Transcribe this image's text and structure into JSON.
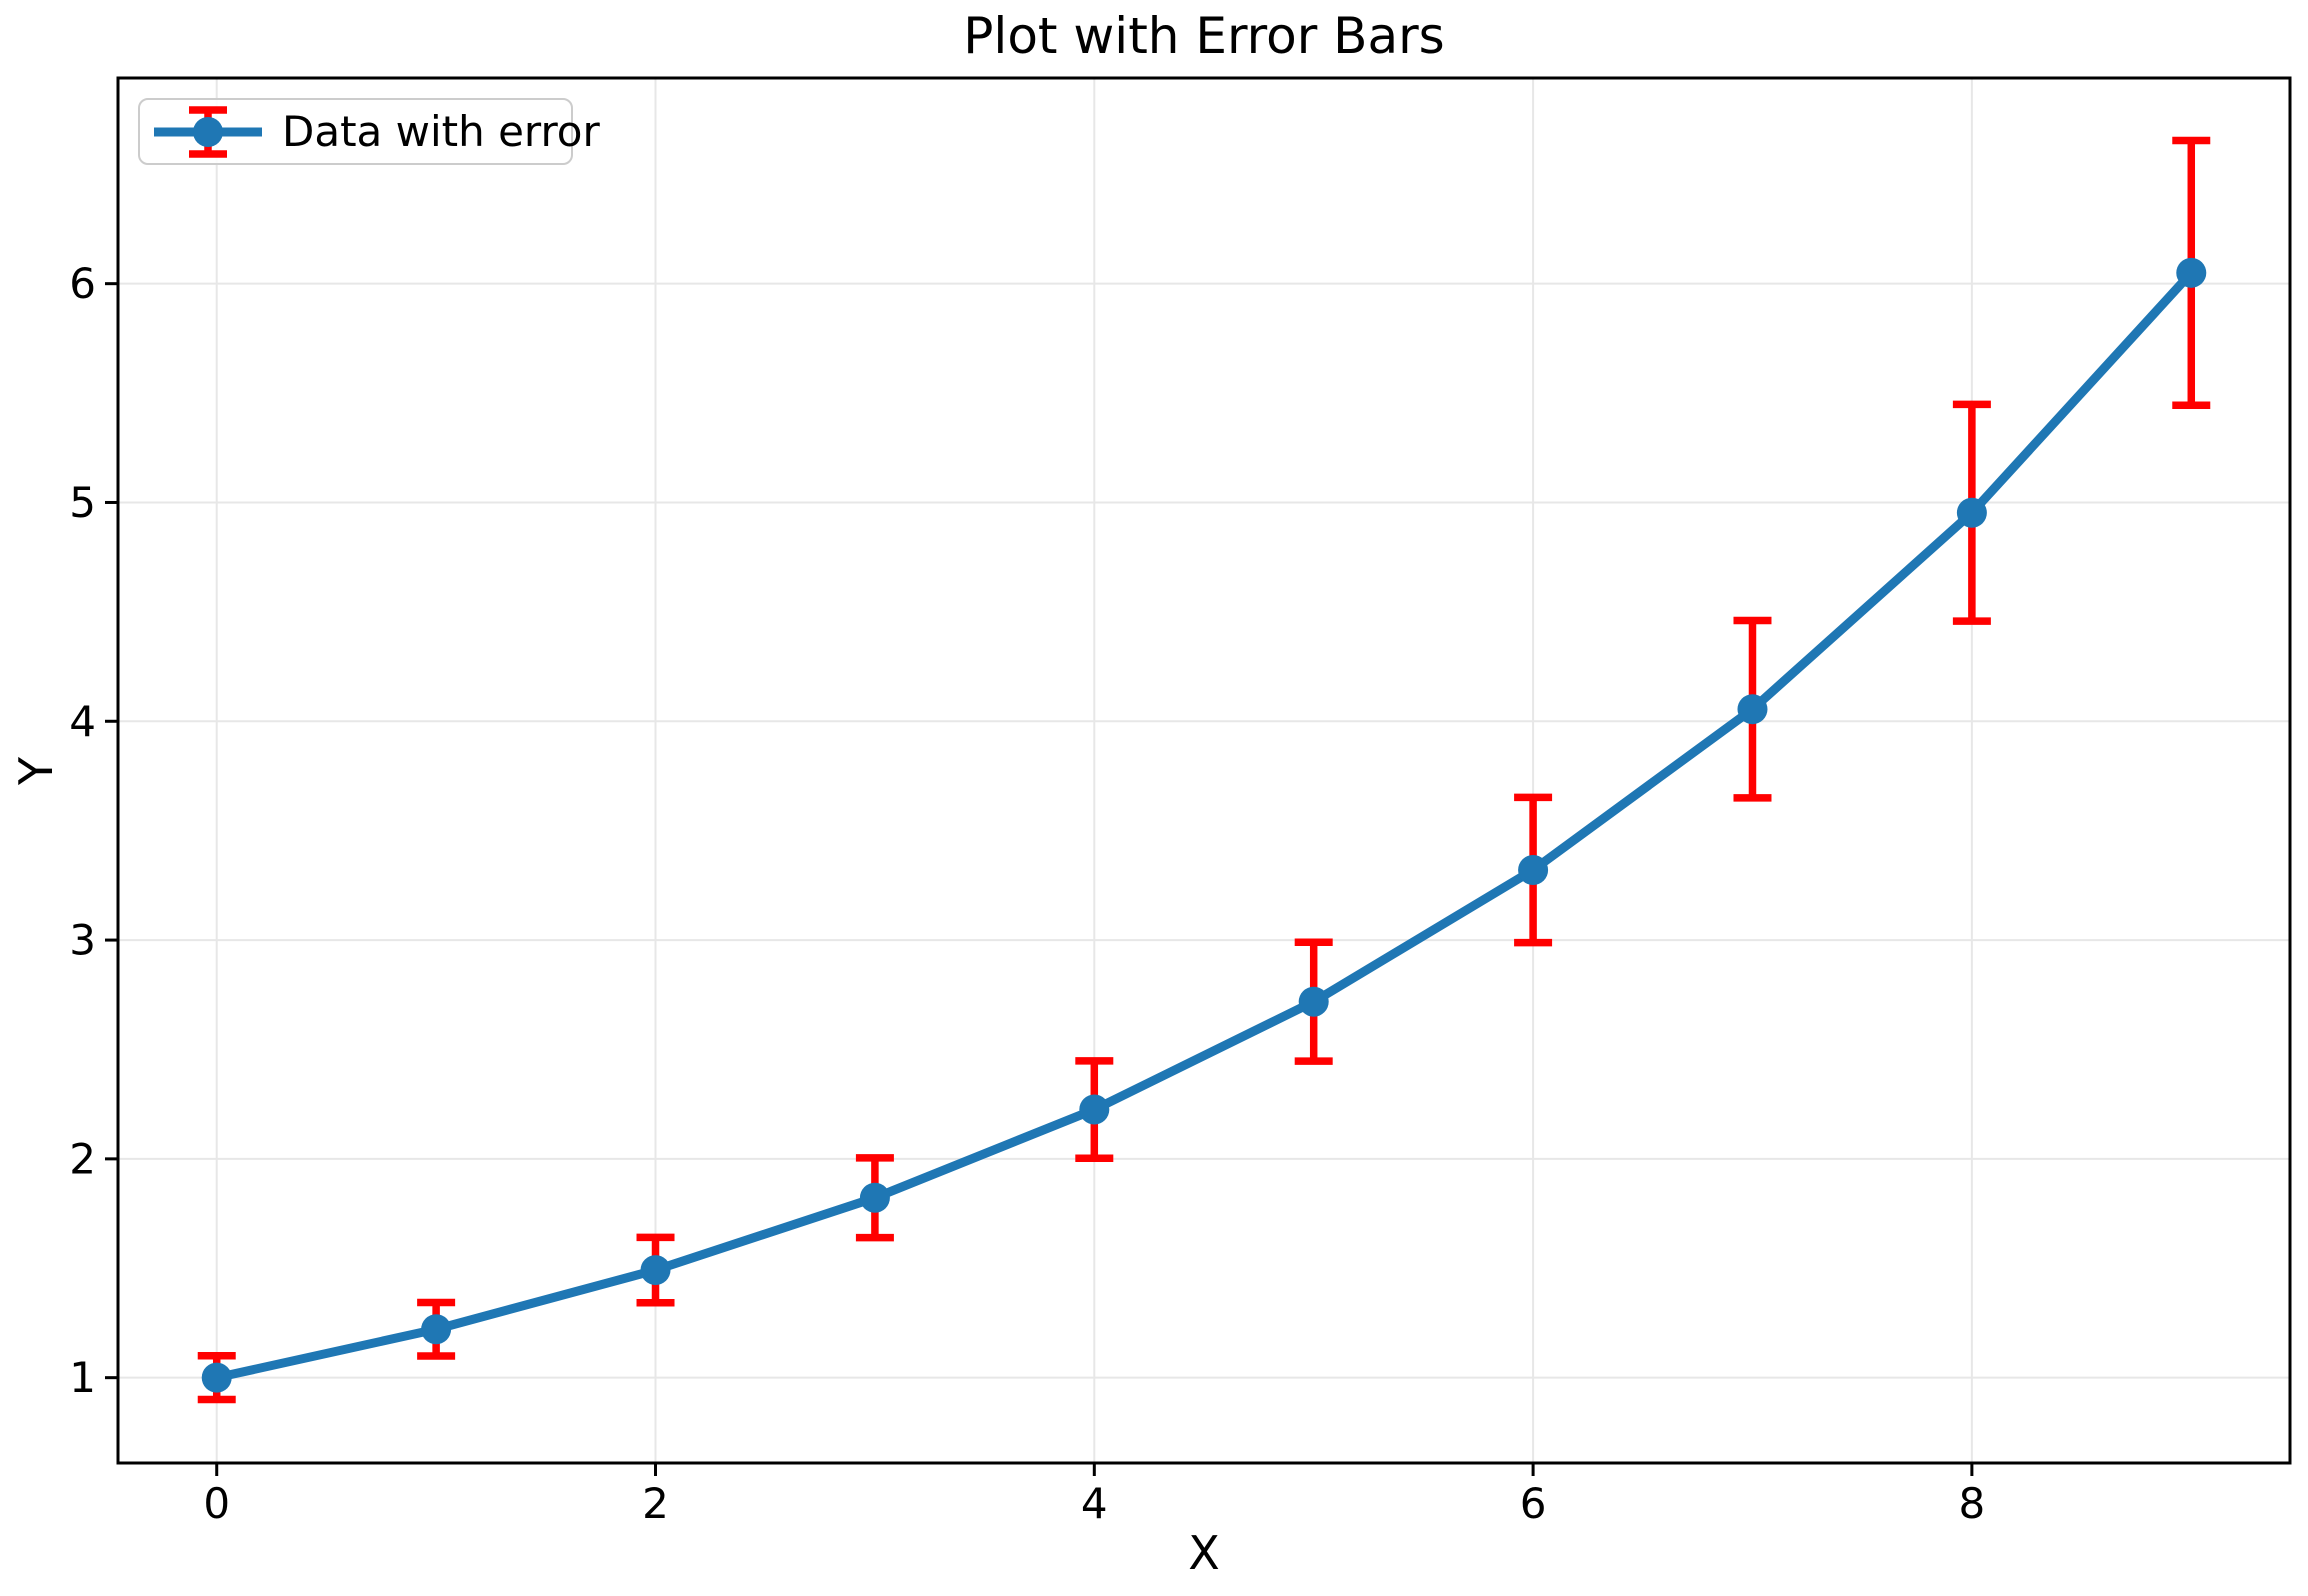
{
  "chart_data": {
    "type": "line",
    "title": "Plot with Error Bars",
    "xlabel": "X",
    "ylabel": "Y",
    "legend_label": "Data with error",
    "legend_position": "upper left",
    "grid": true,
    "x": [
      0,
      1,
      2,
      3,
      4,
      5,
      6,
      7,
      8,
      9
    ],
    "y": [
      1.0,
      1.2214,
      1.4918,
      1.8221,
      2.2255,
      2.7183,
      3.3201,
      4.0552,
      4.953,
      6.0496
    ],
    "yerr": [
      0.1,
      0.1221,
      0.1492,
      0.1822,
      0.2226,
      0.2718,
      0.332,
      0.4055,
      0.4953,
      0.605
    ],
    "xlim": [
      -0.45,
      9.45
    ],
    "ylim": [
      0.61,
      6.94
    ],
    "xticks": [
      0,
      2,
      4,
      6,
      8
    ],
    "yticks": [
      1,
      2,
      3,
      4,
      5,
      6
    ],
    "colors": {
      "line": "#1f77b4",
      "error": "#ff0000",
      "grid": "#e7e7e7",
      "spine": "#000000",
      "text": "#000000"
    }
  }
}
